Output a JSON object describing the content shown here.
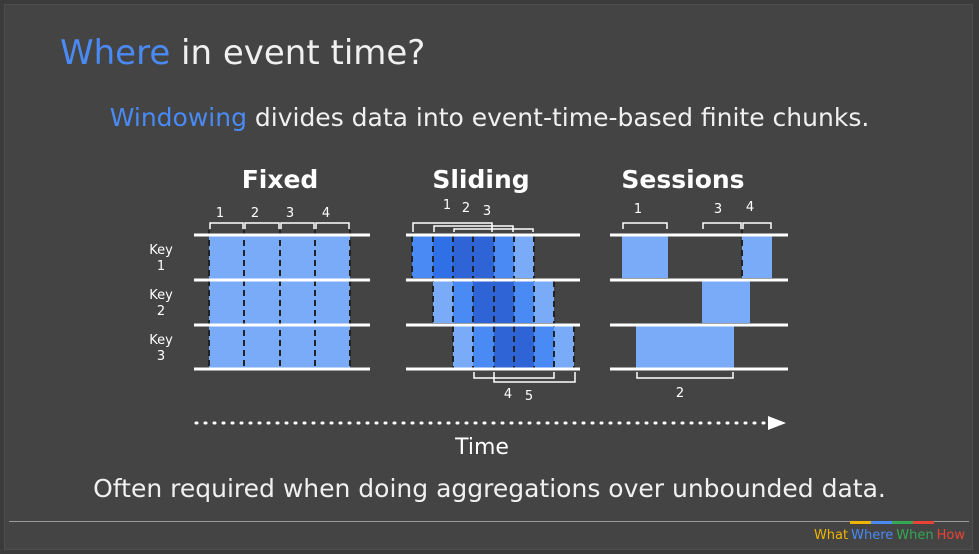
{
  "title": {
    "highlight": "Where",
    "rest": " in event time?"
  },
  "subtitle": {
    "highlight": "Windowing",
    "rest": " divides data into event-time-based finite chunks."
  },
  "diagram": {
    "fixed_label": "Fixed",
    "sliding_label": "Sliding",
    "sessions_label": "Sessions",
    "key_word": "Key",
    "keys": [
      "1",
      "2",
      "3"
    ],
    "fixed_window_labels": [
      "1",
      "2",
      "3",
      "4"
    ],
    "sliding_top_labels": [
      "1",
      "2",
      "3"
    ],
    "sliding_bottom_labels": [
      "4",
      "5"
    ],
    "sessions_top_labels": [
      "1",
      "3",
      "4"
    ],
    "sessions_bottom_labels": [
      "2"
    ],
    "time_label": "Time"
  },
  "footer": "Often required when doing aggregations over unbounded data.",
  "nav": {
    "what": "What",
    "where": "Where",
    "when": "When",
    "how": "How"
  },
  "colors": {
    "background": "#444444",
    "accent": "#4a8af4",
    "light_window": "#7aabf8",
    "mid_window": "#4a8af4",
    "dark_window": "#2f64d6",
    "nav_what": "#f0b400",
    "nav_where": "#4a8af4",
    "nav_when": "#34a853",
    "nav_how": "#ea4335"
  }
}
